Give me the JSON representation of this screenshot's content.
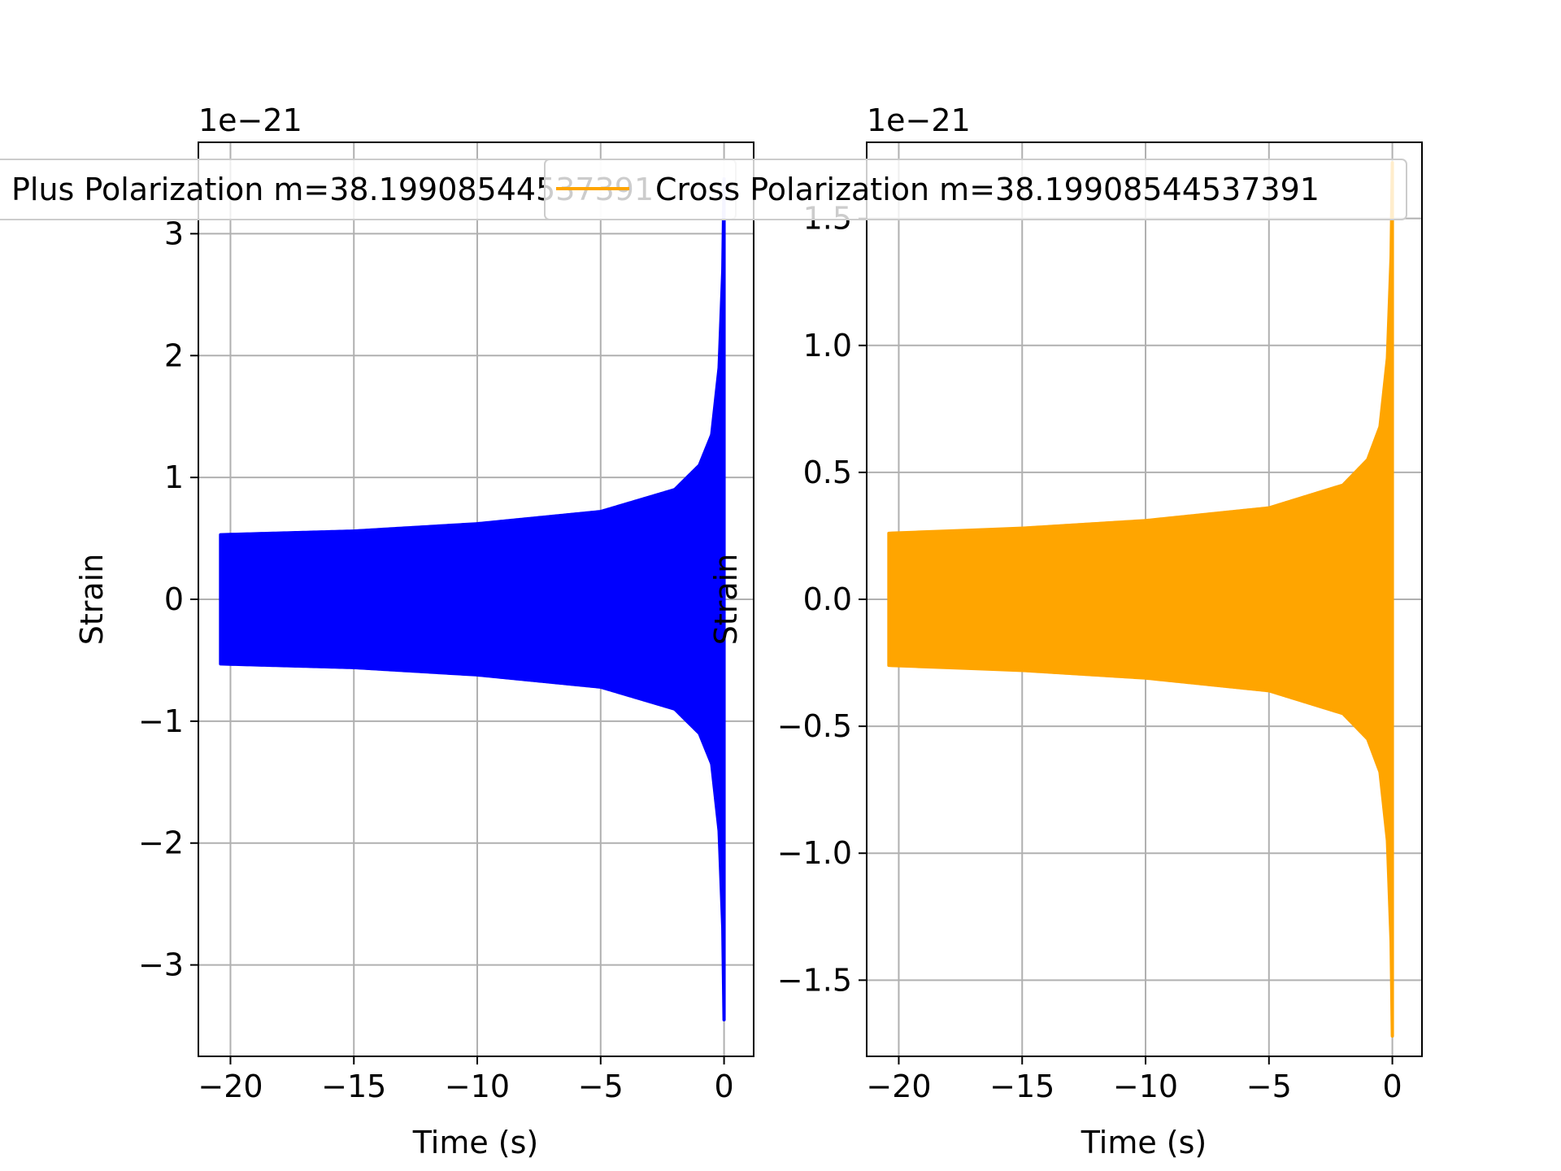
{
  "chart_data": [
    {
      "type": "line",
      "exponent_label": "1e−21",
      "xlabel": "Time (s)",
      "ylabel": "Strain",
      "xlim": [
        -21.3,
        1.2
      ],
      "ylim": [
        -3.75,
        3.75
      ],
      "xticks": [
        -20,
        -15,
        -10,
        -5,
        0
      ],
      "xtick_labels": [
        "−20",
        "−15",
        "−10",
        "−5",
        "0"
      ],
      "yticks": [
        -3,
        -2,
        -1,
        0,
        1,
        2,
        3
      ],
      "ytick_labels": [
        "−3",
        "−2",
        "−1",
        "0",
        "1",
        "2",
        "3"
      ],
      "grid": true,
      "legend_position": "top-center",
      "series": [
        {
          "name": "Plus Polarization m=38.19908544537391",
          "color": "#0000ff",
          "t_start": -20.4,
          "t_end": 0.0,
          "envelope": {
            "t": [
              -20.4,
              -15,
              -10,
              -5,
              -2,
              -1,
              -0.5,
              -0.2,
              -0.05,
              0.0
            ],
            "amplitude": [
              0.53,
              0.56,
              0.62,
              0.72,
              0.9,
              1.1,
              1.35,
              1.9,
              2.7,
              3.45
            ]
          }
        }
      ]
    },
    {
      "type": "line",
      "exponent_label": "1e−21",
      "xlabel": "Time (s)",
      "ylabel": "Strain",
      "xlim": [
        -21.3,
        1.2
      ],
      "ylim": [
        -1.8,
        1.8
      ],
      "xticks": [
        -20,
        -15,
        -10,
        -5,
        0
      ],
      "xtick_labels": [
        "−20",
        "−15",
        "−10",
        "−5",
        "0"
      ],
      "yticks": [
        -1.5,
        -1.0,
        -0.5,
        0.0,
        0.5,
        1.0,
        1.5
      ],
      "ytick_labels": [
        "−1.5",
        "−1.0",
        "−0.5",
        "0.0",
        "0.5",
        "1.0",
        "1.5"
      ],
      "grid": true,
      "legend_position": "top-center",
      "series": [
        {
          "name": "Cross Polarization m=38.19908544537391",
          "color": "#ffa500",
          "t_start": -20.4,
          "t_end": 0.0,
          "envelope": {
            "t": [
              -20.4,
              -15,
              -10,
              -5,
              -2,
              -1,
              -0.5,
              -0.2,
              -0.05,
              0.0
            ],
            "amplitude": [
              0.26,
              0.28,
              0.31,
              0.36,
              0.45,
              0.55,
              0.68,
              0.95,
              1.35,
              1.72
            ]
          }
        }
      ]
    }
  ]
}
